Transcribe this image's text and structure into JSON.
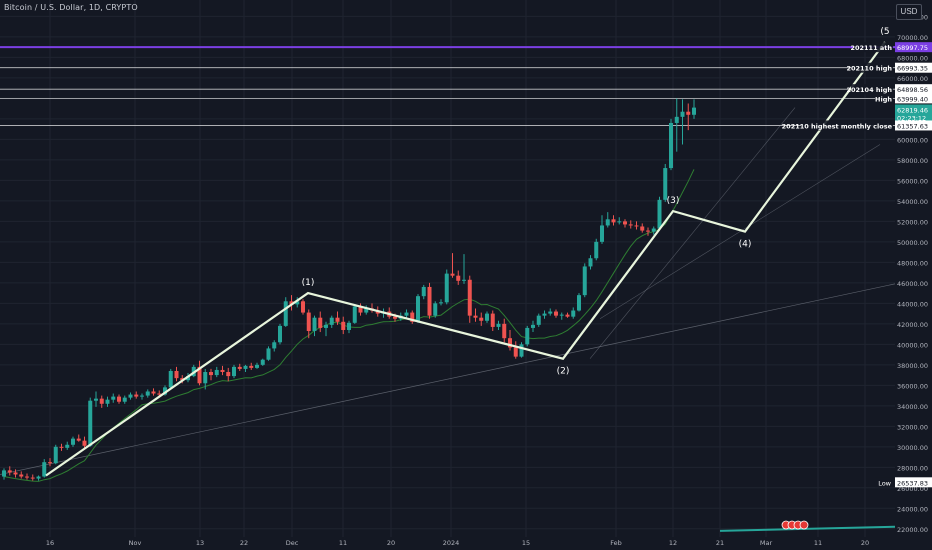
{
  "header": {
    "title": "Bitcoin / U.S. Dollar, 1D, CRYPTO",
    "currency_button": "USD"
  },
  "chart_data": {
    "type": "candlestick",
    "x_ticks": [
      "16",
      "Nov",
      "13",
      "22",
      "Dec",
      "11",
      "20",
      "2024",
      "15",
      "Feb",
      "12",
      "21",
      "Mar",
      "11",
      "20"
    ],
    "y_ticks": [
      22000,
      24000,
      26000,
      28000,
      30000,
      32000,
      34000,
      36000,
      38000,
      40000,
      42000,
      44000,
      46000,
      48000,
      50000,
      52000,
      54000,
      56000,
      58000,
      60000,
      62000,
      64000,
      66000,
      68000,
      70000,
      72000
    ],
    "ylim": [
      21200,
      73600
    ],
    "colors": {
      "up": "#26a69a",
      "down": "#ef5350",
      "background": "#141823",
      "wave": "#e8f5dc",
      "ath_line": "#7b3fe4",
      "price_badge": "#26a69a"
    },
    "candles": [
      [
        27100,
        27900,
        26800,
        27700
      ],
      [
        27700,
        28100,
        27200,
        27500
      ],
      [
        27500,
        27800,
        27000,
        27300
      ],
      [
        27300,
        27600,
        26900,
        27100
      ],
      [
        27100,
        27400,
        26800,
        27000
      ],
      [
        27000,
        27300,
        26700,
        26900
      ],
      [
        26900,
        27200,
        26700,
        27100
      ],
      [
        27100,
        28800,
        27000,
        28500
      ],
      [
        28500,
        28900,
        28100,
        28400
      ],
      [
        28400,
        30200,
        28300,
        30000
      ],
      [
        30000,
        30300,
        29600,
        29900
      ],
      [
        29900,
        30500,
        29700,
        30200
      ],
      [
        30200,
        31000,
        30000,
        30800
      ],
      [
        30800,
        31200,
        30500,
        30600
      ],
      [
        30600,
        31000,
        29800,
        30100
      ],
      [
        30100,
        34800,
        30000,
        34500
      ],
      [
        34500,
        35400,
        33900,
        34700
      ],
      [
        34700,
        35000,
        33800,
        34200
      ],
      [
        34200,
        34900,
        33900,
        34600
      ],
      [
        34600,
        35200,
        34300,
        34900
      ],
      [
        34900,
        35100,
        34200,
        34400
      ],
      [
        34400,
        35000,
        34200,
        34800
      ],
      [
        34800,
        35300,
        34600,
        35100
      ],
      [
        35100,
        35400,
        34700,
        34900
      ],
      [
        34900,
        35200,
        34600,
        35000
      ],
      [
        35000,
        35600,
        34800,
        35400
      ],
      [
        35400,
        35700,
        35000,
        35200
      ],
      [
        35200,
        35500,
        34800,
        35100
      ],
      [
        35100,
        36000,
        35000,
        35800
      ],
      [
        35800,
        37600,
        35700,
        37400
      ],
      [
        37400,
        37800,
        36400,
        36700
      ],
      [
        36700,
        37000,
        36200,
        36500
      ],
      [
        36500,
        37200,
        36300,
        36900
      ],
      [
        36900,
        38000,
        36800,
        37800
      ],
      [
        37800,
        38400,
        36000,
        36200
      ],
      [
        36200,
        37600,
        35600,
        37300
      ],
      [
        37300,
        37600,
        36500,
        37000
      ],
      [
        37000,
        37800,
        36800,
        37500
      ],
      [
        37500,
        37900,
        37000,
        37300
      ],
      [
        37300,
        37700,
        36400,
        36900
      ],
      [
        36900,
        38000,
        36700,
        37800
      ],
      [
        37800,
        38100,
        37400,
        37600
      ],
      [
        37600,
        38000,
        37300,
        37900
      ],
      [
        37900,
        38200,
        37500,
        37700
      ],
      [
        37700,
        38200,
        37600,
        38000
      ],
      [
        38000,
        38600,
        37900,
        38500
      ],
      [
        38500,
        39800,
        38400,
        39600
      ],
      [
        39600,
        40400,
        39300,
        40200
      ],
      [
        40200,
        42000,
        40000,
        41800
      ],
      [
        41800,
        44600,
        41700,
        44200
      ],
      [
        44200,
        44800,
        43300,
        43900
      ],
      [
        43900,
        44600,
        43600,
        44200
      ],
      [
        44200,
        44400,
        42900,
        43100
      ],
      [
        43100,
        43400,
        40600,
        41300
      ],
      [
        41300,
        42800,
        40800,
        42600
      ],
      [
        42600,
        43200,
        41200,
        41600
      ],
      [
        41600,
        42200,
        40800,
        41900
      ],
      [
        41900,
        42800,
        41600,
        42600
      ],
      [
        42600,
        43200,
        41900,
        42200
      ],
      [
        42200,
        42700,
        41000,
        41400
      ],
      [
        41400,
        42300,
        41100,
        42100
      ],
      [
        42100,
        43900,
        42000,
        43700
      ],
      [
        43700,
        44000,
        42800,
        43100
      ],
      [
        43100,
        43800,
        42900,
        43500
      ],
      [
        43500,
        44000,
        43100,
        43300
      ],
      [
        43300,
        43700,
        42700,
        43000
      ],
      [
        43000,
        43500,
        42600,
        43200
      ],
      [
        43200,
        43600,
        42500,
        42700
      ],
      [
        42700,
        43000,
        42200,
        42500
      ],
      [
        42500,
        43100,
        42300,
        42800
      ],
      [
        42800,
        43400,
        42600,
        43100
      ],
      [
        43100,
        43300,
        42000,
        42200
      ],
      [
        42200,
        44900,
        42100,
        44700
      ],
      [
        44700,
        45800,
        44400,
        45600
      ],
      [
        45600,
        46000,
        42500,
        42800
      ],
      [
        42800,
        44200,
        42600,
        44000
      ],
      [
        44000,
        44400,
        43800,
        44100
      ],
      [
        44100,
        47300,
        43900,
        46900
      ],
      [
        46900,
        48900,
        46500,
        46700
      ],
      [
        46700,
        47200,
        45800,
        46200
      ],
      [
        46200,
        48800,
        45900,
        46300
      ],
      [
        46300,
        46700,
        42100,
        42800
      ],
      [
        42800,
        43500,
        42200,
        42600
      ],
      [
        42600,
        43100,
        41800,
        42300
      ],
      [
        42300,
        43200,
        42100,
        43000
      ],
      [
        43000,
        43300,
        41300,
        41700
      ],
      [
        41700,
        42300,
        41400,
        42000
      ],
      [
        42000,
        42500,
        40200,
        40600
      ],
      [
        40600,
        41400,
        39400,
        39700
      ],
      [
        39700,
        40300,
        38600,
        38800
      ],
      [
        38800,
        40200,
        38700,
        40000
      ],
      [
        40000,
        41800,
        39800,
        41600
      ],
      [
        41600,
        42300,
        41200,
        41900
      ],
      [
        41900,
        43000,
        41700,
        42800
      ],
      [
        42800,
        43300,
        42500,
        43000
      ],
      [
        43000,
        43500,
        42800,
        43200
      ],
      [
        43200,
        43400,
        42600,
        42800
      ],
      [
        42800,
        43100,
        42400,
        42900
      ],
      [
        42900,
        43100,
        42600,
        42700
      ],
      [
        42700,
        43600,
        42500,
        43300
      ],
      [
        43300,
        45000,
        43200,
        44800
      ],
      [
        44800,
        47900,
        44600,
        47600
      ],
      [
        47600,
        48700,
        47300,
        48400
      ],
      [
        48400,
        50300,
        48200,
        50000
      ],
      [
        50000,
        52600,
        49800,
        51600
      ],
      [
        51600,
        52900,
        51400,
        52200
      ],
      [
        52200,
        52600,
        51600,
        51900
      ],
      [
        51900,
        52400,
        51700,
        52000
      ],
      [
        52000,
        52200,
        51400,
        51700
      ],
      [
        51700,
        52100,
        51300,
        51600
      ],
      [
        51600,
        52000,
        51200,
        51500
      ],
      [
        51500,
        51800,
        50900,
        51100
      ],
      [
        51100,
        51400,
        50600,
        51000
      ],
      [
        51000,
        51500,
        50700,
        51300
      ],
      [
        51300,
        54400,
        51200,
        54100
      ],
      [
        54100,
        57600,
        53900,
        57200
      ],
      [
        57200,
        62000,
        57000,
        61600
      ],
      [
        61600,
        64000,
        58800,
        62200
      ],
      [
        62200,
        63900,
        59500,
        62700
      ],
      [
        62700,
        63500,
        60900,
        62400
      ],
      [
        62400,
        63900,
        62000,
        63100
      ]
    ],
    "horizontal_levels": [
      {
        "label": "202111 ath",
        "value": 68997.75,
        "color": "#7b3fe4"
      },
      {
        "label": "202110 high",
        "value": 66993.35,
        "color": "#ffffff"
      },
      {
        "label": "202104 high",
        "value": 64898.56,
        "color": "#ffffff"
      },
      {
        "label": "High",
        "value": 63999.4,
        "color": "#ffffff"
      },
      {
        "label": "202110 highest monthly close",
        "value": 61357.63,
        "color": "#ffffff"
      },
      {
        "label": "Low",
        "value": 26537.83,
        "color": "#ffffff"
      }
    ],
    "current_price": {
      "value": 62819.46,
      "countdown": "02:23:12"
    },
    "wave_labels": [
      {
        "label": "(1)",
        "value": 45000
      },
      {
        "label": "(2)",
        "value": 38600
      },
      {
        "label": "(3)",
        "value": 53000
      },
      {
        "label": "(4)",
        "value": 51000
      },
      {
        "label": "(5",
        "value": 69500
      }
    ],
    "annotations": [
      "202111 ath",
      "202110 high",
      "202104 high",
      "High",
      "202110 highest monthly close",
      "Low"
    ]
  }
}
